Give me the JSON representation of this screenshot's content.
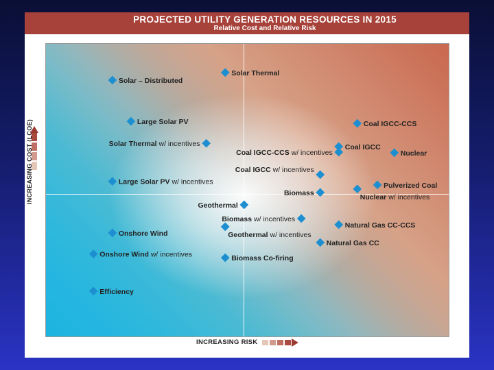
{
  "colors": {
    "title_bar": "#a7423a",
    "marker": "#1d8fd0",
    "background": "#1a2390",
    "arrow_dark": "#9b3a30",
    "arrow_light": "#e5c7b7"
  },
  "header": {
    "title": "PROJECTED UTILITY GENERATION RESOURCES IN 2015",
    "subtitle": "Relative Cost and Relative Risk"
  },
  "chart_data": {
    "type": "scatter",
    "title": "PROJECTED UTILITY GENERATION RESOURCES IN 2015",
    "subtitle": "Relative Cost and Relative Risk",
    "xlabel": "INCREASING RISK",
    "ylabel": "INCREASING COST (LCOE)",
    "xlim": [
      0,
      100
    ],
    "ylim": [
      0,
      100
    ],
    "grid": false,
    "quadrant_lines": true,
    "points": [
      {
        "bold": "Solar Thermal",
        "rest": "",
        "x": 44.5,
        "y": 90.2,
        "side": "right"
      },
      {
        "bold": "Solar – Distributed",
        "rest": "",
        "x": 16.5,
        "y": 87.6,
        "side": "right"
      },
      {
        "bold": "Large Solar PV",
        "rest": "",
        "x": 21.1,
        "y": 73.5,
        "side": "right"
      },
      {
        "bold": "Solar Thermal",
        "rest": " w/ incentives",
        "x": 39.8,
        "y": 66.0,
        "side": "left"
      },
      {
        "bold": "Coal IGCC-CCS",
        "rest": "",
        "x": 77.3,
        "y": 72.8,
        "side": "right"
      },
      {
        "bold": "Coal IGCC-CCS",
        "rest": " w/ incentives",
        "x": 72.7,
        "y": 63.0,
        "side": "left"
      },
      {
        "bold": "Coal IGCC",
        "rest": "",
        "x": 72.7,
        "y": 64.9,
        "side": "right"
      },
      {
        "bold": "Nuclear",
        "rest": "",
        "x": 86.5,
        "y": 62.8,
        "side": "right"
      },
      {
        "bold": "Coal IGCC",
        "rest": " w/ incentives",
        "x": 68.1,
        "y": 55.3,
        "side": "above-left"
      },
      {
        "bold": "Large Solar PV",
        "rest": " w/ incentives",
        "x": 16.5,
        "y": 53.0,
        "side": "right"
      },
      {
        "bold": "Pulverized Coal",
        "rest": "",
        "x": 82.3,
        "y": 51.8,
        "side": "right"
      },
      {
        "bold": "Biomass",
        "rest": "",
        "x": 68.1,
        "y": 49.2,
        "side": "left"
      },
      {
        "bold": "Nuclear",
        "rest": " w/ incentives",
        "x": 77.3,
        "y": 50.4,
        "side": "below-right"
      },
      {
        "bold": "Geothermal",
        "rest": "",
        "x": 49.2,
        "y": 45.0,
        "side": "left"
      },
      {
        "bold": "Biomass",
        "rest": " w/ incentives",
        "x": 63.4,
        "y": 40.3,
        "side": "left"
      },
      {
        "bold": "Natural Gas CC-CCS",
        "rest": "",
        "x": 72.7,
        "y": 38.2,
        "side": "right"
      },
      {
        "bold": "Onshore Wind",
        "rest": "",
        "x": 16.5,
        "y": 35.4,
        "side": "right"
      },
      {
        "bold": "Geothermal",
        "rest": " w/ incentives",
        "x": 44.5,
        "y": 37.5,
        "side": "below-right"
      },
      {
        "bold": "Natural Gas CC",
        "rest": "",
        "x": 68.1,
        "y": 32.1,
        "side": "right"
      },
      {
        "bold": "Onshore Wind",
        "rest": " w/ incentives",
        "x": 11.8,
        "y": 28.2,
        "side": "right"
      },
      {
        "bold": "Biomass Co-firing",
        "rest": "",
        "x": 44.5,
        "y": 26.9,
        "side": "right"
      },
      {
        "bold": "Efficiency",
        "rest": "",
        "x": 11.8,
        "y": 15.5,
        "side": "right"
      }
    ]
  }
}
